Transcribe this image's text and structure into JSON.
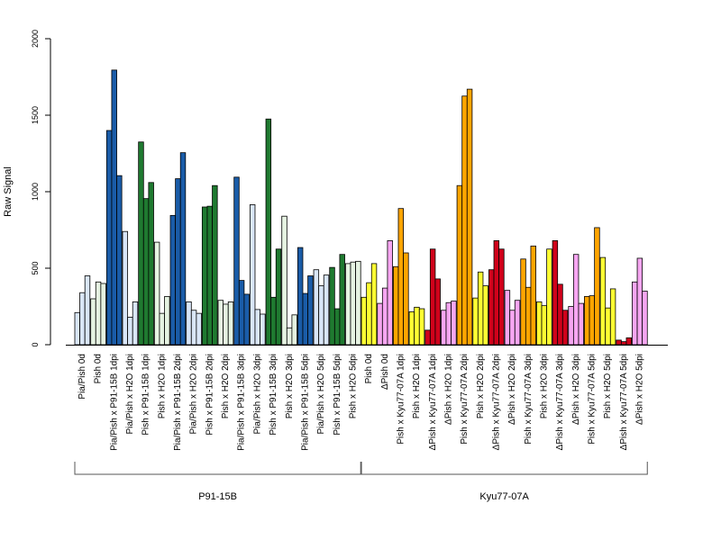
{
  "chart_data": {
    "type": "bar",
    "title": "",
    "xlabel": "",
    "ylabel": "Raw Signal",
    "ylim": [
      0,
      2000
    ],
    "yticks": [
      0,
      500,
      1000,
      1500,
      2000
    ],
    "grid": false,
    "colors": {
      "light_blue": "#d9e6f7",
      "blue": "#1a5ca8",
      "light_green": "#e6f3e2",
      "green": "#1f7a30",
      "yellow": "#ffff33",
      "pink": "#f7a6f2",
      "orange": "#ffa500",
      "red": "#d0021b"
    },
    "groups": [
      {
        "label": "Pia/Pish 0d",
        "color": "light_blue",
        "values": [
          210,
          340,
          450
        ]
      },
      {
        "label": "Pish 0d",
        "color": "light_green",
        "values": [
          300,
          410,
          400
        ]
      },
      {
        "label": "Pia/Pish x P91-15B 1dpi",
        "color": "blue",
        "values": [
          1400,
          1795,
          1105
        ]
      },
      {
        "label": "Pia/Pish x H2O 1dpi",
        "color": "light_blue",
        "values": [
          740,
          180,
          280
        ]
      },
      {
        "label": "Pish x P91-15B 1dpi",
        "color": "green",
        "values": [
          1325,
          955,
          1060
        ]
      },
      {
        "label": "Pish x H2O 1dpi",
        "color": "light_green",
        "values": [
          670,
          205,
          315
        ]
      },
      {
        "label": "Pia/Pish x P91-15B 2dpi",
        "color": "blue",
        "values": [
          845,
          1085,
          1255
        ]
      },
      {
        "label": "Pia/Pish x H2O 2dpi",
        "color": "light_blue",
        "values": [
          280,
          225,
          205
        ]
      },
      {
        "label": "Pish x P91-15B 2dpi",
        "color": "green",
        "values": [
          900,
          905,
          1040
        ]
      },
      {
        "label": "Pish x H2O 2dpi",
        "color": "light_green",
        "values": [
          290,
          265,
          280
        ]
      },
      {
        "label": "Pia/Pish x P91-15B 3dpi",
        "color": "blue",
        "values": [
          1095,
          420,
          330
        ]
      },
      {
        "label": "Pia/Pish x H2O 3dpi",
        "color": "light_blue",
        "values": [
          915,
          230,
          200
        ]
      },
      {
        "label": "Pish x P91-15B 3dpi",
        "color": "green",
        "values": [
          1475,
          310,
          625
        ]
      },
      {
        "label": "Pish x H2O 3dpi",
        "color": "light_green",
        "values": [
          840,
          110,
          195
        ]
      },
      {
        "label": "Pia/Pish x P91-15B 5dpi",
        "color": "blue",
        "values": [
          635,
          335,
          450
        ]
      },
      {
        "label": "Pia/Pish x H2O 5dpi",
        "color": "light_blue",
        "values": [
          490,
          385,
          455
        ]
      },
      {
        "label": "Pish x P91-15B 5dpi",
        "color": "green",
        "values": [
          505,
          235,
          590
        ]
      },
      {
        "label": "Pish x H2O 5dpi",
        "color": "light_green",
        "values": [
          530,
          540,
          545
        ]
      },
      {
        "label": "Pish 0d",
        "color": "yellow",
        "values": [
          310,
          405,
          530
        ]
      },
      {
        "label": "ΔPish 0d",
        "color": "pink",
        "values": [
          270,
          370,
          680
        ]
      },
      {
        "label": "Pish x Kyu77-07A 1dpi",
        "color": "orange",
        "values": [
          510,
          890,
          600
        ]
      },
      {
        "label": "Pish x H2O 1dpi",
        "color": "yellow",
        "values": [
          215,
          245,
          235
        ]
      },
      {
        "label": "ΔPish x Kyu77-07A 1dpi",
        "color": "red",
        "values": [
          95,
          625,
          430
        ]
      },
      {
        "label": "ΔPish x H2O 1dpi",
        "color": "pink",
        "values": [
          225,
          275,
          285
        ]
      },
      {
        "label": "Pish x Kyu77-07A 2dpi",
        "color": "orange",
        "values": [
          1040,
          1625,
          1670
        ]
      },
      {
        "label": "Pish x H2O 2dpi",
        "color": "yellow",
        "values": [
          305,
          475,
          385
        ]
      },
      {
        "label": "ΔPish x Kyu77-07A 2dpi",
        "color": "red",
        "values": [
          490,
          680,
          625
        ]
      },
      {
        "label": "ΔPish x H2O 2dpi",
        "color": "pink",
        "values": [
          355,
          225,
          290
        ]
      },
      {
        "label": "Pish x Kyu77-07A 3dpi",
        "color": "orange",
        "values": [
          560,
          375,
          645
        ]
      },
      {
        "label": "Pish x H2O 3dpi",
        "color": "yellow",
        "values": [
          280,
          255,
          625
        ]
      },
      {
        "label": "ΔPish x Kyu77-07A 3dpi",
        "color": "red",
        "values": [
          680,
          395,
          225
        ]
      },
      {
        "label": "ΔPish x H2O 3dpi",
        "color": "pink",
        "values": [
          250,
          590,
          270
        ]
      },
      {
        "label": "Pish x Kyu77-07A 5dpi",
        "color": "orange",
        "values": [
          315,
          320,
          765
        ]
      },
      {
        "label": "Pish x H2O 5dpi",
        "color": "yellow",
        "values": [
          570,
          240,
          365
        ]
      },
      {
        "label": "ΔPish x Kyu77-07A 5dpi",
        "color": "red",
        "values": [
          30,
          20,
          45
        ]
      },
      {
        "label": "ΔPish x H2O 5dpi",
        "color": "pink",
        "values": [
          410,
          565,
          350
        ]
      }
    ],
    "categories_groups": [
      {
        "label": "P91-15B",
        "start": 0,
        "end": 17
      },
      {
        "label": "Kyu77-07A",
        "start": 18,
        "end": 35
      }
    ]
  }
}
